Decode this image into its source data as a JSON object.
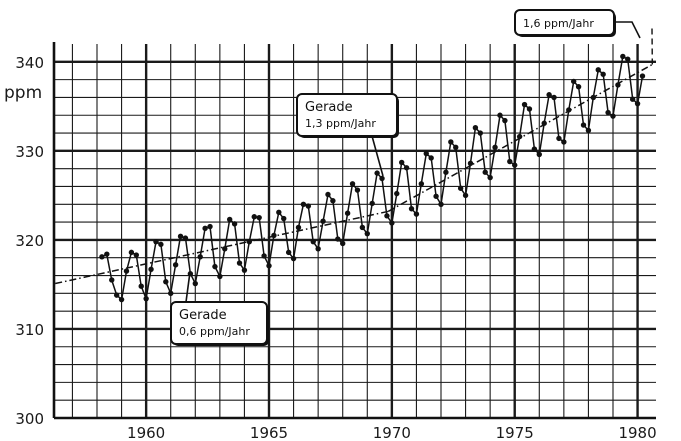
{
  "chart_data": {
    "type": "line",
    "ylabel": "ppm",
    "xlim": [
      1956.25,
      1980.75
    ],
    "ylim": [
      300,
      342
    ],
    "x_ticks": [
      1960,
      1965,
      1970,
      1975,
      1980
    ],
    "x_tick_labels": [
      "1960",
      "1965",
      "1970",
      "1975",
      "1980"
    ],
    "y_ticks": [
      300,
      310,
      320,
      330,
      340
    ],
    "y_tick_labels": [
      "300",
      "310",
      "320",
      "330",
      "340"
    ],
    "grid": true,
    "series": [
      {
        "x": [
          1958.2,
          1958.4,
          1958.6,
          1958.8,
          1959.0,
          1959.2,
          1959.4,
          1959.6,
          1959.8,
          1960.0,
          1960.2,
          1960.4,
          1960.6,
          1960.8,
          1961.0,
          1961.2,
          1961.4,
          1961.6,
          1961.8,
          1962.0,
          1962.2,
          1962.4,
          1962.6,
          1962.8,
          1963.0,
          1963.2,
          1963.4,
          1963.6,
          1963.8,
          1964.0,
          1964.2,
          1964.4,
          1964.6,
          1964.8,
          1965.0,
          1965.2,
          1965.4,
          1965.6,
          1965.8,
          1966.0,
          1966.2,
          1966.4,
          1966.6,
          1966.8,
          1967.0,
          1967.2,
          1967.4,
          1967.6,
          1967.8,
          1968.0,
          1968.2,
          1968.4,
          1968.6,
          1968.8,
          1969.0,
          1969.2,
          1969.4,
          1969.6,
          1969.8,
          1970.0,
          1970.2,
          1970.4,
          1970.6,
          1970.8,
          1971.0,
          1971.2,
          1971.4,
          1971.6,
          1971.8,
          1972.0,
          1972.2,
          1972.4,
          1972.6,
          1972.8,
          1973.0,
          1973.2,
          1973.4,
          1973.6,
          1973.8,
          1974.0,
          1974.2,
          1974.4,
          1974.6,
          1974.8,
          1975.0,
          1975.2,
          1975.4,
          1975.6,
          1975.8,
          1976.0,
          1976.2,
          1976.4,
          1976.6,
          1976.8,
          1977.0,
          1977.2,
          1977.4,
          1977.6,
          1977.8,
          1978.0,
          1978.2,
          1978.4,
          1978.6,
          1978.8,
          1979.0,
          1979.2,
          1979.4,
          1979.6,
          1979.8,
          1980.0,
          1980.2
        ],
        "y": [
          318.1,
          318.4,
          315.5,
          313.8,
          313.3,
          316.5,
          318.6,
          318.3,
          314.8,
          313.4,
          316.7,
          319.8,
          319.5,
          315.3,
          314.0,
          317.2,
          320.4,
          320.2,
          316.2,
          315.1,
          318.1,
          321.3,
          321.5,
          317.0,
          315.9,
          319.0,
          322.3,
          321.8,
          317.4,
          316.6,
          319.8,
          322.6,
          322.5,
          318.2,
          317.1,
          320.5,
          323.1,
          322.4,
          318.6,
          317.9,
          321.4,
          324.0,
          323.8,
          319.8,
          319.0,
          322.1,
          325.1,
          324.4,
          320.1,
          319.6,
          323.0,
          326.3,
          325.6,
          321.4,
          320.7,
          324.1,
          327.5,
          326.9,
          322.7,
          321.9,
          325.2,
          328.7,
          328.1,
          323.5,
          322.9,
          326.3,
          329.7,
          329.2,
          324.9,
          324.0,
          327.6,
          331.0,
          330.4,
          325.8,
          325.0,
          328.6,
          332.6,
          332.0,
          327.6,
          327.0,
          330.4,
          334.0,
          333.4,
          328.8,
          328.4,
          331.6,
          335.2,
          334.7,
          330.2,
          329.6,
          333.1,
          336.3,
          336.0,
          331.4,
          331.0,
          334.6,
          337.8,
          337.2,
          332.9,
          332.3,
          336.0,
          339.1,
          338.6,
          334.3,
          333.9,
          337.4,
          340.6,
          340.3,
          335.8,
          335.3,
          338.4
        ]
      }
    ],
    "trend_lines": [
      {
        "x": [
          1956.3,
          1969.85
        ],
        "y": [
          315.1,
          323.2
        ]
      },
      {
        "x": [
          1969.85,
          1980.6
        ],
        "y": [
          323.2,
          339.7
        ]
      }
    ],
    "annotations": [
      {
        "lines": [
          "1,6 ppm/Jahr"
        ]
      },
      {
        "lines": [
          "Gerade",
          "1,3 ppm/Jahr"
        ]
      },
      {
        "lines": [
          "Gerade",
          "0,6 ppm/Jahr"
        ]
      }
    ]
  }
}
